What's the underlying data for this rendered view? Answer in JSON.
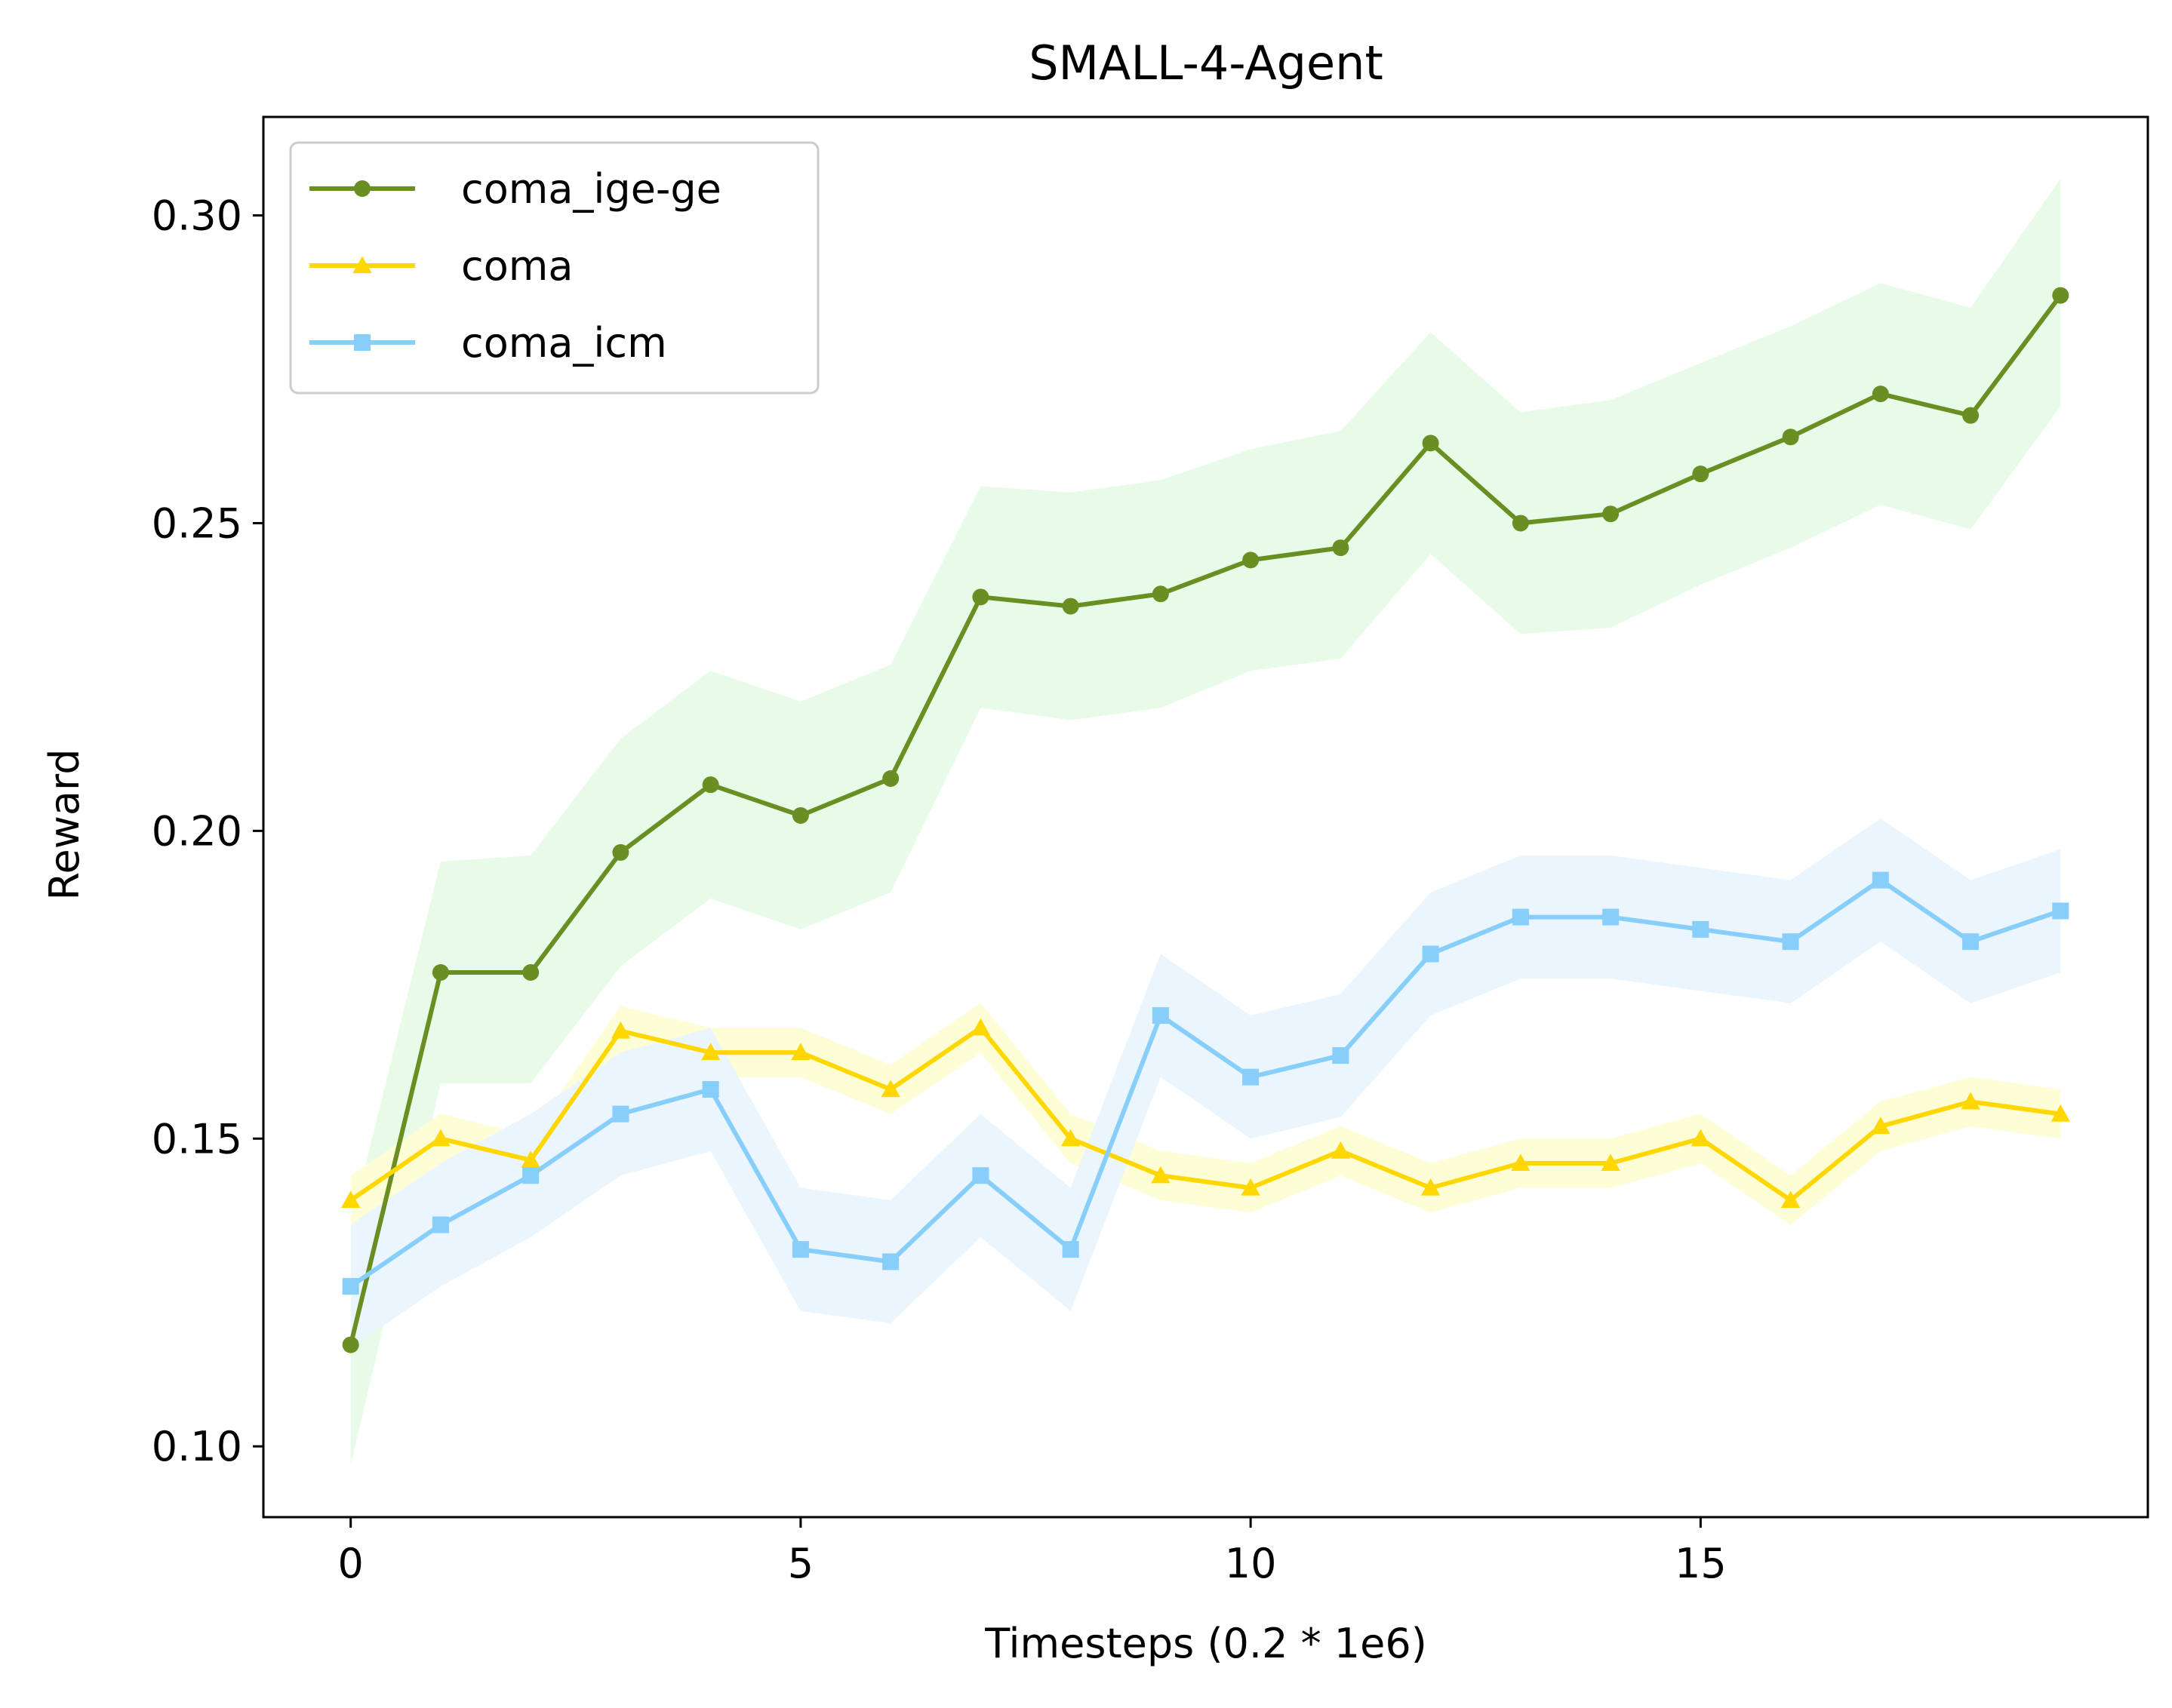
{
  "chart_data": {
    "type": "line",
    "title": "SMALL-4-Agent",
    "xlabel": "Timesteps (0.2 * 1e6)",
    "ylabel": "Reward",
    "xlim": [
      -0.97,
      19.97
    ],
    "ylim": [
      0.0885,
      0.316
    ],
    "xticks": [
      0,
      5,
      10,
      15
    ],
    "xtick_labels": [
      "0",
      "5",
      "10",
      "15"
    ],
    "yticks": [
      0.1,
      0.15,
      0.2,
      0.25,
      0.3
    ],
    "ytick_labels": [
      "0.10",
      "0.15",
      "0.20",
      "0.25",
      "0.30"
    ],
    "grid": false,
    "legend_position": "top-left",
    "x": [
      0,
      1,
      2,
      3,
      4,
      5,
      6,
      7,
      8,
      9,
      10,
      11,
      12,
      13,
      14,
      15,
      16,
      17,
      18,
      19
    ],
    "series": [
      {
        "name": "coma_ige-ge",
        "color": "#6b8e23",
        "band_color": "#e8fbe8",
        "marker": "circle",
        "values": [
          0.1165,
          0.177,
          0.177,
          0.1965,
          0.2075,
          0.2025,
          0.2085,
          0.238,
          0.2365,
          0.2385,
          0.244,
          0.246,
          0.263,
          0.25,
          0.2515,
          0.258,
          0.264,
          0.271,
          0.2675,
          0.287
        ],
        "upper": [
          0.136,
          0.195,
          0.196,
          0.215,
          0.226,
          0.221,
          0.227,
          0.256,
          0.255,
          0.257,
          0.262,
          0.265,
          0.281,
          0.268,
          0.27,
          0.276,
          0.282,
          0.289,
          0.285,
          0.306
        ],
        "lower": [
          0.097,
          0.159,
          0.159,
          0.178,
          0.189,
          0.184,
          0.19,
          0.22,
          0.218,
          0.22,
          0.226,
          0.228,
          0.245,
          0.232,
          0.233,
          0.24,
          0.246,
          0.253,
          0.249,
          0.269
        ]
      },
      {
        "name": "coma",
        "color": "#ffd700",
        "band_color": "#fdfdd6",
        "marker": "triangle",
        "values": [
          0.14,
          0.15,
          0.1465,
          0.1675,
          0.164,
          0.164,
          0.158,
          0.168,
          0.15,
          0.144,
          0.142,
          0.148,
          0.142,
          0.146,
          0.146,
          0.15,
          0.14,
          0.152,
          0.156,
          0.154
        ],
        "upper": [
          0.144,
          0.154,
          0.1505,
          0.1715,
          0.168,
          0.168,
          0.162,
          0.172,
          0.154,
          0.148,
          0.146,
          0.152,
          0.146,
          0.15,
          0.15,
          0.154,
          0.144,
          0.156,
          0.16,
          0.158
        ],
        "lower": [
          0.136,
          0.146,
          0.1425,
          0.1635,
          0.16,
          0.16,
          0.154,
          0.164,
          0.146,
          0.14,
          0.138,
          0.144,
          0.138,
          0.142,
          0.142,
          0.146,
          0.136,
          0.148,
          0.152,
          0.15
        ]
      },
      {
        "name": "coma_icm",
        "color": "#87cefa",
        "band_color": "#ebf5fd",
        "marker": "square",
        "values": [
          0.126,
          0.136,
          0.144,
          0.154,
          0.158,
          0.132,
          0.13,
          0.144,
          0.132,
          0.17,
          0.16,
          0.1635,
          0.18,
          0.186,
          0.186,
          0.184,
          0.182,
          0.192,
          0.182,
          0.187
        ],
        "upper": [
          0.136,
          0.146,
          0.154,
          0.164,
          0.168,
          0.142,
          0.14,
          0.154,
          0.142,
          0.18,
          0.17,
          0.1735,
          0.19,
          0.196,
          0.196,
          0.194,
          0.192,
          0.202,
          0.192,
          0.197
        ],
        "lower": [
          0.116,
          0.126,
          0.134,
          0.144,
          0.148,
          0.122,
          0.12,
          0.134,
          0.122,
          0.16,
          0.15,
          0.1535,
          0.17,
          0.176,
          0.176,
          0.174,
          0.172,
          0.182,
          0.172,
          0.177
        ]
      }
    ]
  }
}
